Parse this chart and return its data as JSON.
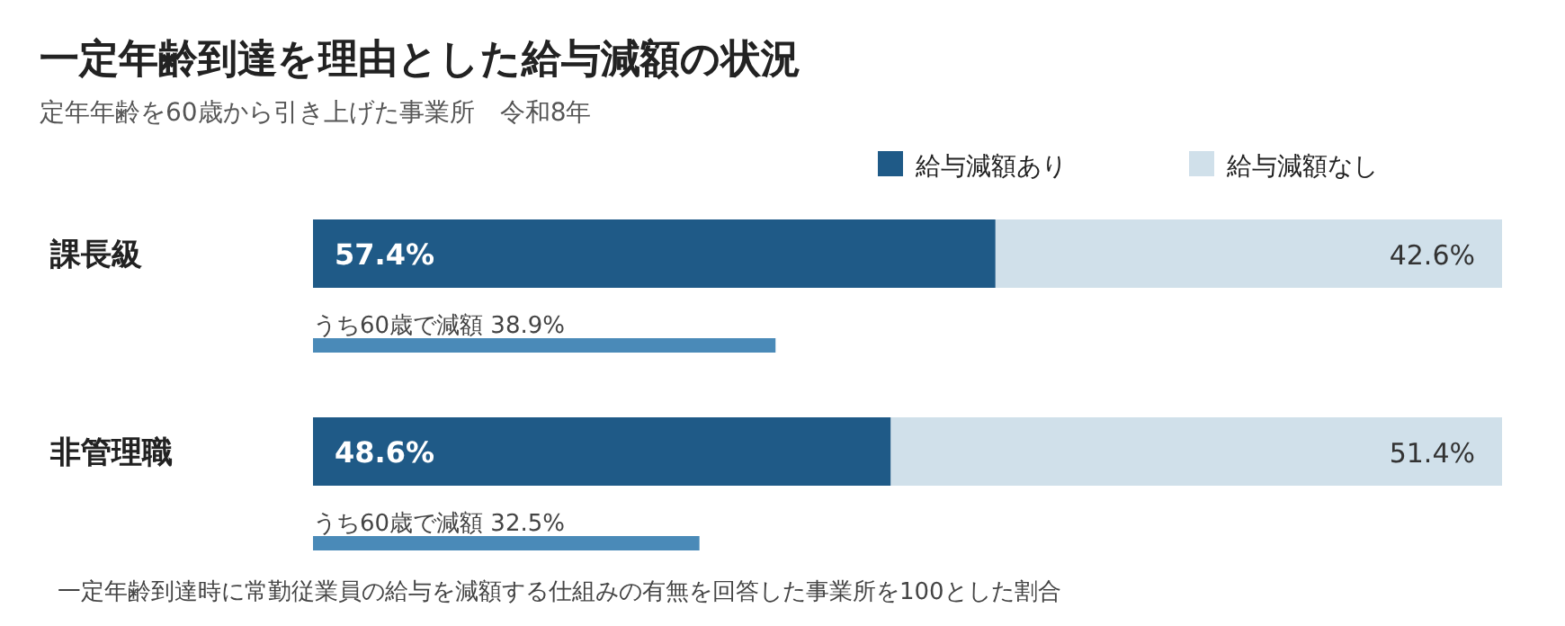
{
  "chart_data": {
    "type": "bar",
    "orientation": "horizontal",
    "stacked": true,
    "title": "一定年齢到達を理由とした給与減額の状況",
    "subtitle": "定年年齢を60歳から引き上げた事業所　令和8年",
    "categories": [
      "課長級",
      null,
      "非管理職",
      null
    ],
    "series": [
      {
        "name": "給与減額あり",
        "color": "#1f5a87",
        "values": [
          57.4,
          null,
          48.6,
          null
        ],
        "value_labels": [
          "57.4%",
          null,
          "48.6%",
          null
        ]
      },
      {
        "name": "給与減額なし",
        "color": "#d0e0ea",
        "values": [
          42.6,
          null,
          51.4,
          null
        ],
        "value_labels": [
          "42.6%",
          null,
          "51.4%",
          null
        ]
      },
      {
        "color": "#4a8ab8",
        "values": [
          null,
          38.9,
          null,
          32.5
        ],
        "value_labels": [
          null,
          "うち60歳で減額 38.9%",
          null,
          "うち60歳で減額 32.5%"
        ]
      }
    ],
    "xlim": [
      0,
      100
    ],
    "tick_labels": "y",
    "legend": "top right",
    "annotations": [
      "一定年齢到達時に常勤従業員の給与を減額する仕組みの有無を回答した事業所を100とした割合"
    ]
  }
}
